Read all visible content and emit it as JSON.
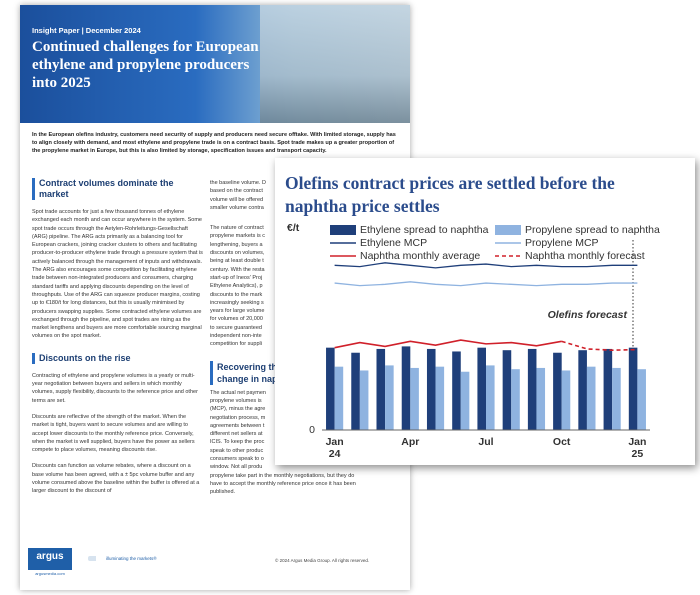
{
  "document": {
    "header": {
      "label": "Insight Paper | December 2024",
      "title": "Continued challenges for European ethylene and propylene producers into 2025"
    },
    "intro": "In the European olefins industry, customers need security of supply and producers need secure offtake. With limited storage, supply has to align closely with demand, and most ethylene and propylene trade is on a contract basis. Spot trade makes up a greater proportion of the propylene market in Europe, but this is also limited by storage, specification issues and transport capacity.",
    "left_column": [
      {
        "heading": "Contract volumes dominate the market",
        "paragraphs": [
          "Spot trade accounts for just a few thousand tonnes of ethylene exchanged each month and can occur anywhere in the system. Some spot trade occurs through the Aetylen-Rohrleitungs-Gesellschaft (ARG) pipeline. The ARG acts primarily as a balancing tool for European crackers, joining cracker clusters to others and facilitating producer-to-producer ethylene trade through a pressure system that is actively balanced through the management of inputs and withdrawals. The ARG also encourages some competition by facilitating ethylene trade between non-integrated producers and consumers, charging standard tariffs and applying discounts depending on the level of throughputs. Use of the ARG can squeeze producer margins, costing up to €180/t for long distances, but this is usually minimised by producers swapping supplies. Some contracted ethylene volumes are exchanged through the pipeline, and spot trades are rising as the market lengthens and buyers are more comfortable sourcing marginal volumes on the spot market."
        ]
      },
      {
        "heading": "Discounts on the rise",
        "paragraphs": [
          "Contracting of ethylene and propylene volumes is a yearly or multi-year negotiation between buyers and sellers in which monthly volumes, supply flexibility, discounts to the reference price and other terms are set.",
          "Discounts are reflective of the strength of the market. When the market is tight, buyers want to secure volumes and are willing to accept lower discounts to the monthly reference price. Conversely, when the market is well supplied, buyers have the power as sellers compete to place volumes, meaning discounts rise.",
          "Discounts can function as volume rebates, where a discount on a base volume has been agreed, with a ± 5pc volume buffer and any volume consumed above the baseline within the buffer is offered at a larger discount to the discount of"
        ]
      }
    ],
    "right_column": [
      {
        "lines": [
          "the baseline volume. D",
          "based on the contract",
          "volume will be offered",
          "smaller volume contra"
        ]
      },
      {
        "lines": [
          "The nature of contract",
          "propylene markets is c",
          "lengthening, buyers a",
          "discounts on volumes,",
          "being at least double t",
          "century. With the resta",
          "start-up of Ineos' Proj",
          "Ethylene Analytics), p",
          "discounts to the mark",
          "increasingly seeking s",
          "years for large volume",
          "for volumes of 20,000",
          "to secure guaranteed",
          "independent non-inte",
          "competition for suppli"
        ]
      },
      {
        "heading_lines": [
          "Recovering th",
          "change in nap"
        ],
        "lines": [
          "The actual net paymen",
          "propylene volumes is",
          "(MCP), minus the agre",
          "negotiation process, m",
          "agreements between t",
          "different net sellers at",
          "ICIS. To keep the proc",
          "speak to other produc",
          "consumers speak to o",
          "window. Not all produ",
          "propylene take part in the monthly negotiations, but they do",
          "have to accept the monthly reference price once it has been",
          "published."
        ]
      }
    ],
    "footer": {
      "brand": "argus",
      "brand_url": "argusmedia.com",
      "tagline": "illuminating the markets®",
      "copyright": "© 2024 Argus Media Group. All rights reserved."
    }
  },
  "chart_data": {
    "type": "bar",
    "title": "Olefins contract prices are settled before the naphtha price settles",
    "y_label": "€/t",
    "annotation": "Olefins forecast",
    "categories": [
      "Jan 24",
      null,
      null,
      "Apr",
      null,
      null,
      "Jul",
      null,
      null,
      "Oct",
      null,
      null,
      "Jan 25"
    ],
    "ylim": [
      0,
      1500
    ],
    "yticks": [
      0
    ],
    "grid": true,
    "series": [
      {
        "name": "Ethylene spread to naphtha",
        "kind": "bar",
        "color": "#1f3f7a",
        "values": [
          650,
          610,
          640,
          660,
          640,
          620,
          650,
          630,
          640,
          610,
          630,
          640,
          650
        ]
      },
      {
        "name": "Propylene spread to naphtha",
        "kind": "bar",
        "color": "#8fb3e0",
        "values": [
          500,
          470,
          510,
          490,
          500,
          460,
          510,
          480,
          490,
          470,
          500,
          490,
          480
        ]
      },
      {
        "name": "Ethylene MCP",
        "kind": "line",
        "color": "#1f3f7a",
        "values": [
          1300,
          1290,
          1320,
          1300,
          1280,
          1300,
          1310,
          1290,
          1300,
          1290,
          1290,
          1300,
          1300
        ]
      },
      {
        "name": "Propylene MCP",
        "kind": "line",
        "color": "#8fb3e0",
        "values": [
          1160,
          1140,
          1150,
          1170,
          1150,
          1140,
          1160,
          1150,
          1140,
          1150,
          1150,
          1160,
          1160
        ]
      },
      {
        "name": "Naphtha monthly average",
        "kind": "line",
        "color": "#d0202a",
        "values": [
          650,
          690,
          660,
          700,
          670,
          710,
          680,
          690,
          665,
          700,
          null,
          null,
          null
        ]
      },
      {
        "name": "Naphtha monthly forecast",
        "kind": "line",
        "dash": true,
        "color": "#d0202a",
        "values": [
          null,
          null,
          null,
          null,
          null,
          null,
          null,
          null,
          null,
          700,
          640,
          630,
          635
        ]
      }
    ]
  }
}
